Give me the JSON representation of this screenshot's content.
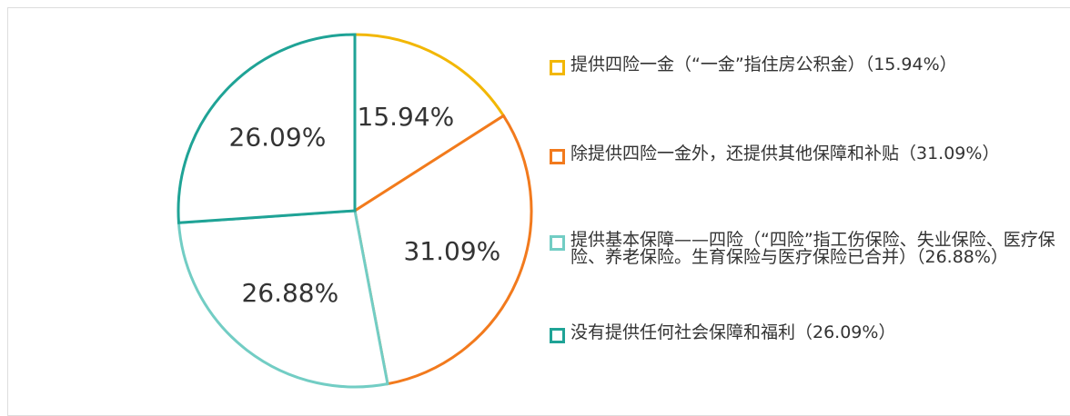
{
  "chart_data": {
    "type": "pie",
    "categories": [
      "提供四险一金（“一金”指住房公积金）（15.94%）",
      "除提供四险一金外，还提供其他保障和补贴（31.09%）",
      "提供基本保障——四险（“四险”指工伤保险、失业保险、医疗保险、养老保险。生育保险与医疗保险已合并）（26.88%）",
      "没有提供任何社会保障和福利（26.09%）"
    ],
    "values": [
      15.94,
      31.09,
      26.88,
      26.09
    ],
    "value_labels": [
      "15.94%",
      "31.09%",
      "26.88%",
      "26.09%"
    ],
    "colors": [
      "#f2b705",
      "#f27a1d",
      "#72cdc4",
      "#1fa396"
    ]
  }
}
